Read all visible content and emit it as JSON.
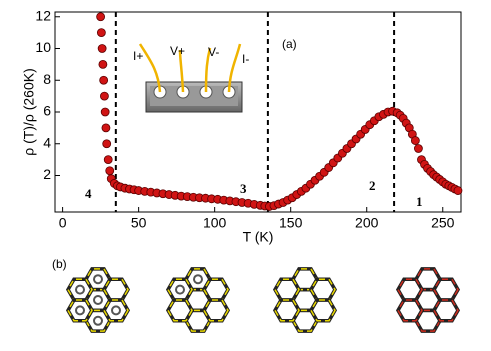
{
  "chart_data": {
    "type": "scatter",
    "y_label": "ρ (T)/ρ (260K)",
    "x_label": "T (K)",
    "panel_labels": [
      "(a)",
      "(b)"
    ],
    "inset_labels": [
      "I+",
      "V+",
      "V-",
      "I-"
    ],
    "region_labels": [
      "4",
      "3",
      "2",
      "1"
    ],
    "x": [
      25,
      25.5,
      26,
      26.5,
      27,
      27.5,
      28,
      28.5,
      29,
      30,
      31,
      32,
      34,
      36,
      38,
      41,
      44,
      47,
      50,
      54,
      58,
      62,
      66,
      70,
      74,
      78,
      82,
      86,
      90,
      94,
      98,
      102,
      106,
      110,
      114,
      118,
      122,
      126,
      130,
      133,
      136,
      139,
      142,
      145,
      148,
      151,
      154,
      157,
      160,
      163,
      166,
      169,
      172,
      175,
      178,
      181,
      184,
      187,
      190,
      193,
      196,
      199,
      202,
      205,
      208,
      211,
      214,
      217,
      220,
      222,
      224,
      226,
      228,
      230,
      232,
      234,
      236,
      238,
      240,
      242,
      244,
      246,
      248,
      250,
      252,
      254,
      256,
      258,
      260
    ],
    "series": [
      {
        "color": "#d01414",
        "values": [
          12,
          11,
          10,
          9,
          8,
          7,
          6,
          5,
          4,
          3,
          2.3,
          1.8,
          1.5,
          1.35,
          1.28,
          1.2,
          1.15,
          1.1,
          1.05,
          1.0,
          0.95,
          0.9,
          0.85,
          0.8,
          0.75,
          0.7,
          0.67,
          0.63,
          0.6,
          0.57,
          0.53,
          0.5,
          0.45,
          0.4,
          0.35,
          0.3,
          0.25,
          0.18,
          0.12,
          0.08,
          0.05,
          0.1,
          0.2,
          0.3,
          0.45,
          0.6,
          0.8,
          1.0,
          1.2,
          1.45,
          1.7,
          1.95,
          2.2,
          2.5,
          2.8,
          3.1,
          3.4,
          3.7,
          4.0,
          4.3,
          4.6,
          4.9,
          5.2,
          5.45,
          5.7,
          5.85,
          6.0,
          6.05,
          5.95,
          5.8,
          5.6,
          5.3,
          5.0,
          4.6,
          4.2,
          3.7,
          3.0,
          2.7,
          2.45,
          2.25,
          2.05,
          1.9,
          1.75,
          1.6,
          1.45,
          1.35,
          1.25,
          1.15,
          1.05
        ]
      }
    ],
    "vlines": [
      35,
      135,
      218
    ],
    "xlim": [
      -5,
      262
    ],
    "ylim": [
      -0.3,
      12.3
    ],
    "xticks": [
      0,
      50,
      100,
      150,
      200,
      250
    ],
    "yticks": [
      2,
      4,
      6,
      8,
      10,
      12
    ]
  }
}
